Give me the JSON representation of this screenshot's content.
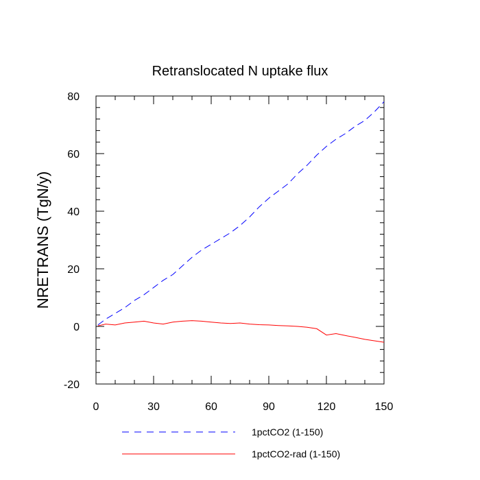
{
  "chart_data": {
    "type": "line",
    "title": "Retranslocated N uptake flux",
    "xlabel": "",
    "ylabel": "NRETRANS  (TgN/y)",
    "xlim": [
      0,
      150
    ],
    "ylim": [
      -20,
      80
    ],
    "xticks": [
      0,
      30,
      60,
      90,
      120,
      150
    ],
    "yticks": [
      -20,
      0,
      20,
      40,
      60,
      80
    ],
    "grid": false,
    "legend_position": "bottom",
    "series": [
      {
        "name": "1pctCO2 (1-150)",
        "color": "#0000ff",
        "dash": "dashed",
        "x": [
          1,
          5,
          10,
          15,
          20,
          25,
          30,
          35,
          40,
          45,
          50,
          55,
          60,
          65,
          70,
          75,
          80,
          85,
          90,
          95,
          100,
          105,
          110,
          115,
          120,
          125,
          130,
          135,
          140,
          145,
          150
        ],
        "y": [
          0.5,
          2.5,
          4.5,
          6.5,
          9,
          11,
          13.5,
          16,
          18,
          21,
          24,
          26.5,
          28.5,
          30.5,
          32.5,
          35,
          38,
          41.5,
          44.5,
          47,
          49.5,
          53,
          56,
          59.5,
          62.5,
          65,
          67,
          69.5,
          71.5,
          74.5,
          78
        ]
      },
      {
        "name": "1pctCO2-rad (1-150)",
        "color": "#ff0000",
        "dash": "solid",
        "x": [
          1,
          5,
          10,
          15,
          20,
          25,
          30,
          35,
          40,
          45,
          50,
          55,
          60,
          65,
          70,
          75,
          80,
          85,
          90,
          95,
          100,
          105,
          110,
          115,
          120,
          125,
          130,
          135,
          140,
          145,
          150
        ],
        "y": [
          0.2,
          0.8,
          0.5,
          1.2,
          1.5,
          1.8,
          1.2,
          0.8,
          1.5,
          1.8,
          2.0,
          1.8,
          1.5,
          1.2,
          1.0,
          1.2,
          0.8,
          0.6,
          0.5,
          0.3,
          0.2,
          0.0,
          -0.3,
          -0.8,
          -3.0,
          -2.5,
          -3.2,
          -3.8,
          -4.5,
          -5.0,
          -5.5
        ]
      }
    ]
  }
}
